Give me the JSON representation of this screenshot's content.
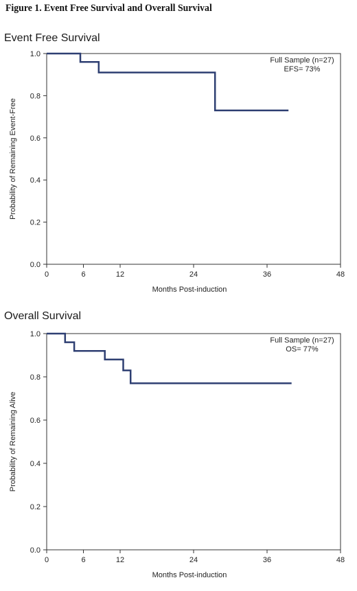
{
  "figure_title": "Figure 1. Event Free Survival and Overall Survival",
  "colors": {
    "curve": "#2e3f72",
    "axis": "#333333"
  },
  "chart_data": [
    {
      "type": "line",
      "step": "post",
      "title": "Event Free Survival",
      "xlabel": "Months Post-induction",
      "ylabel": "Probability of Remaining Event-Free",
      "xlim": [
        0,
        48
      ],
      "ylim": [
        0.0,
        1.0
      ],
      "xticks": [
        "0",
        "6",
        "12",
        "24",
        "36",
        "48"
      ],
      "yticks": [
        "0.0",
        "0.2",
        "0.4",
        "0.6",
        "0.8",
        "1.0"
      ],
      "annotation": [
        "Full Sample (n=27)",
        "EFS= 73%"
      ],
      "grid": false,
      "series": [
        {
          "x": [
            0,
            5.5,
            5.5,
            8.5,
            8.5,
            27.5,
            27.5,
            39.5
          ],
          "y": [
            1.0,
            1.0,
            0.96,
            0.96,
            0.91,
            0.91,
            0.73,
            0.73
          ]
        }
      ]
    },
    {
      "type": "line",
      "step": "post",
      "title": "Overall Survival",
      "xlabel": "Months Post-induction",
      "ylabel": "Probability of Remaining Alive",
      "xlim": [
        0,
        48
      ],
      "ylim": [
        0.0,
        1.0
      ],
      "xticks": [
        "0",
        "6",
        "12",
        "24",
        "36",
        "48"
      ],
      "yticks": [
        "0.0",
        "0.2",
        "0.4",
        "0.6",
        "0.8",
        "1.0"
      ],
      "annotation": [
        "Full Sample (n=27)",
        "OS= 77%"
      ],
      "grid": false,
      "series": [
        {
          "x": [
            0,
            3,
            3,
            4.5,
            4.5,
            9.5,
            9.5,
            12.5,
            12.5,
            13.7,
            13.7,
            40
          ],
          "y": [
            1.0,
            1.0,
            0.96,
            0.96,
            0.92,
            0.92,
            0.88,
            0.88,
            0.83,
            0.83,
            0.77,
            0.77
          ]
        }
      ]
    }
  ]
}
